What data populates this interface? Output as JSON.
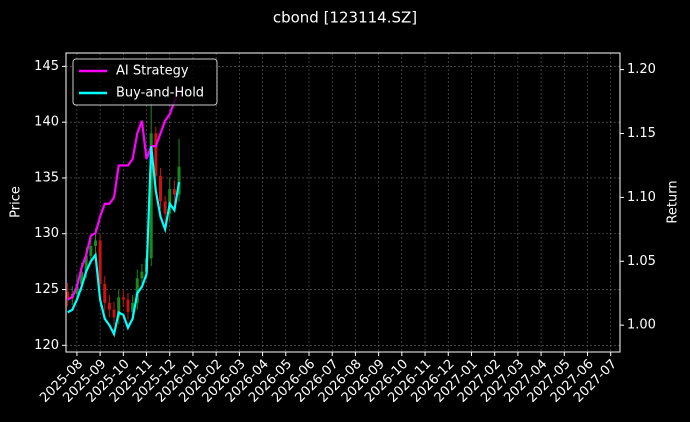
{
  "chart_data": {
    "type": "candlestick",
    "title": "cbond [123114.SZ]",
    "ylabel": "Price",
    "y2label": "Return",
    "x": [
      -0.4,
      -0.2,
      0,
      0.2,
      0.4,
      0.6,
      0.8,
      1.0,
      1.2,
      1.4,
      1.6,
      1.8,
      2.0,
      2.2,
      2.4,
      2.6,
      2.8,
      3.0,
      3.2,
      3.4,
      3.6,
      3.8,
      4.0,
      4.2,
      4.4
    ],
    "open": [
      124.8,
      124.2,
      124.6,
      125.5,
      126.6,
      128.0,
      128.9,
      129.4,
      125.5,
      123.8,
      123.2,
      122.5,
      124.3,
      124.1,
      123.0,
      123.8,
      126.0,
      126.6,
      127.8,
      139.0,
      135.2,
      132.9,
      131.8,
      134.0,
      133.5
    ],
    "high": [
      125.6,
      125.3,
      126.3,
      127.4,
      128.8,
      129.8,
      130.5,
      129.9,
      126.2,
      124.5,
      123.9,
      125.0,
      124.9,
      124.7,
      124.5,
      126.8,
      127.3,
      128.5,
      141.8,
      139.6,
      135.9,
      133.4,
      135.0,
      134.8,
      138.5
    ],
    "low": [
      123.5,
      123.6,
      124.0,
      124.9,
      126.0,
      127.3,
      128.3,
      124.8,
      123.0,
      122.5,
      121.8,
      121.9,
      123.4,
      122.3,
      122.4,
      123.2,
      125.4,
      126.0,
      127.1,
      134.5,
      132.2,
      131.0,
      131.1,
      132.7,
      132.9
    ],
    "close": [
      124.2,
      124.6,
      125.5,
      126.6,
      128.0,
      128.9,
      129.4,
      125.5,
      123.8,
      123.2,
      122.5,
      124.3,
      124.1,
      123.0,
      123.8,
      126.0,
      126.6,
      127.8,
      139.0,
      135.2,
      132.9,
      131.8,
      134.0,
      133.5,
      136.0
    ],
    "up_color": "#1a8a1a",
    "down_color": "#d01010",
    "series": [
      {
        "name": "AI Strategy",
        "color": "#ff00ff",
        "axis": "y2",
        "values": [
          1.02,
          1.022,
          1.03,
          1.045,
          1.055,
          1.07,
          1.072,
          1.085,
          1.095,
          1.095,
          1.1,
          1.125,
          1.125,
          1.125,
          1.13,
          1.15,
          1.16,
          1.13,
          1.14,
          1.14,
          1.15,
          1.16,
          1.165,
          1.175,
          1.185
        ]
      },
      {
        "name": "Buy-and-Hold",
        "color": "#00ffff",
        "axis": "y2",
        "values": [
          1.01,
          1.012,
          1.02,
          1.03,
          1.042,
          1.05,
          1.055,
          1.02,
          1.005,
          1.0,
          0.993,
          1.01,
          1.008,
          0.998,
          1.005,
          1.025,
          1.03,
          1.04,
          1.14,
          1.105,
          1.085,
          1.075,
          1.095,
          1.09,
          1.112
        ]
      }
    ],
    "xlim": [
      -0.47,
      23.4
    ],
    "xticks": [
      {
        "value": 0,
        "label": "2025-08"
      },
      {
        "value": 1,
        "label": "2025-09"
      },
      {
        "value": 2,
        "label": "2025-10"
      },
      {
        "value": 3,
        "label": "2025-11"
      },
      {
        "value": 4,
        "label": "2025-12"
      },
      {
        "value": 5,
        "label": "2026-01"
      },
      {
        "value": 6,
        "label": "2026-02"
      },
      {
        "value": 7,
        "label": "2026-03"
      },
      {
        "value": 8,
        "label": "2026-04"
      },
      {
        "value": 9,
        "label": "2026-05"
      },
      {
        "value": 10,
        "label": "2026-06"
      },
      {
        "value": 11,
        "label": "2026-07"
      },
      {
        "value": 12,
        "label": "2026-08"
      },
      {
        "value": 13,
        "label": "2026-09"
      },
      {
        "value": 14,
        "label": "2026-10"
      },
      {
        "value": 15,
        "label": "2026-11"
      },
      {
        "value": 16,
        "label": "2026-12"
      },
      {
        "value": 17,
        "label": "2027-01"
      },
      {
        "value": 18,
        "label": "2027-02"
      },
      {
        "value": 19,
        "label": "2027-03"
      },
      {
        "value": 20,
        "label": "2027-04"
      },
      {
        "value": 21,
        "label": "2027-05"
      },
      {
        "value": 22,
        "label": "2027-06"
      },
      {
        "value": 23,
        "label": "2027-07"
      }
    ],
    "ylim": [
      119.4,
      146.2
    ],
    "yticks": [
      120,
      125,
      130,
      135,
      140,
      145
    ],
    "y2lim": [
      0.979,
      1.213
    ],
    "y2ticks": [
      {
        "value": 1.0,
        "label": "1.00"
      },
      1.05,
      {
        "value": 1.1,
        "label": "1.10"
      },
      1.15,
      {
        "value": 1.2,
        "label": "1.20"
      }
    ],
    "grid": true,
    "legend": "upper left"
  }
}
